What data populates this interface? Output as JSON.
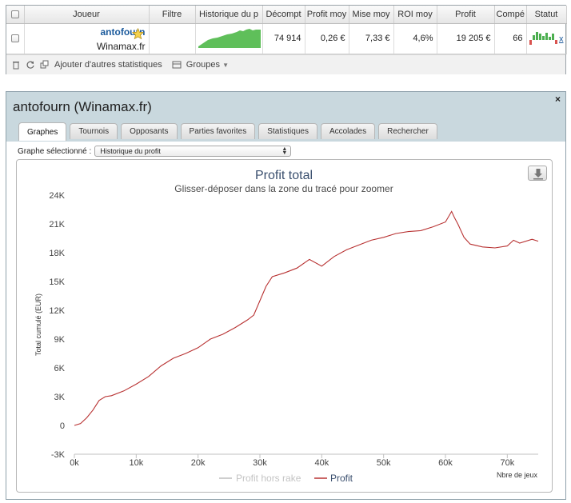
{
  "table": {
    "headers": [
      "Joueur",
      "Filtre",
      "Historique du p",
      "Décompt",
      "Profit moy",
      "Mise moy",
      "ROI moy",
      "Profit",
      "Compé",
      "Statut"
    ],
    "row": {
      "player_name": "antofourn",
      "site": "Winamax.fr",
      "hands": "74 914",
      "avg_profit": "0,26 €",
      "avg_stake": "7,33 €",
      "roi": "4,6%",
      "profit": "19 205 €",
      "competitions": "66",
      "remove_link": "x"
    },
    "bottom": {
      "add_stats": "Ajouter d'autres statistiques",
      "groups": "Groupes"
    }
  },
  "panel": {
    "title": "antofourn (Winamax.fr)",
    "close": "×",
    "tabs": [
      "Graphes",
      "Tournois",
      "Opposants",
      "Parties favorites",
      "Statistiques",
      "Accolades",
      "Rechercher"
    ],
    "active_tab": "Graphes",
    "graph_label": "Graphe sélectionné :",
    "graph_selected": "Historique du profit"
  },
  "chart_data": {
    "type": "line",
    "title": "Profit total",
    "subtitle": "Glisser-déposer dans la zone du tracé pour zoomer",
    "xlabel": "Nbre de jeux",
    "ylabel": "Total cumulé (EUR)",
    "xlim": [
      0,
      75000
    ],
    "ylim": [
      -3000,
      24000
    ],
    "x_ticks": [
      "0k",
      "10k",
      "20k",
      "30k",
      "40k",
      "50k",
      "60k",
      "70k"
    ],
    "y_ticks": [
      "-3K",
      "0",
      "3K",
      "6K",
      "9K",
      "12K",
      "15K",
      "18K",
      "21K",
      "24K"
    ],
    "legend": [
      "Profit hors rake",
      "Profit"
    ],
    "legend_placement": "bottom",
    "colors": {
      "profit": "#b83232",
      "profit_hors_rake": "#bdbdbd"
    },
    "series": [
      {
        "name": "Profit",
        "x": [
          0,
          1000,
          2000,
          3000,
          4000,
          5000,
          6000,
          8000,
          10000,
          12000,
          14000,
          16000,
          18000,
          20000,
          22000,
          24000,
          26000,
          28000,
          29000,
          30000,
          31000,
          32000,
          34000,
          36000,
          38000,
          40000,
          42000,
          44000,
          46000,
          48000,
          50000,
          52000,
          54000,
          56000,
          58000,
          60000,
          61000,
          61500,
          62000,
          63000,
          64000,
          66000,
          68000,
          70000,
          71000,
          72000,
          74000,
          75000
        ],
        "y": [
          0,
          200,
          800,
          1600,
          2600,
          3000,
          3100,
          3600,
          4300,
          5100,
          6200,
          7000,
          7500,
          8100,
          9000,
          9500,
          10200,
          11000,
          11500,
          13000,
          14500,
          15500,
          15900,
          16400,
          17300,
          16600,
          17600,
          18300,
          18800,
          19300,
          19600,
          20000,
          20200,
          20300,
          20700,
          21200,
          22300,
          21600,
          21000,
          19600,
          18900,
          18600,
          18500,
          18700,
          19300,
          19000,
          19400,
          19200
        ]
      }
    ]
  }
}
